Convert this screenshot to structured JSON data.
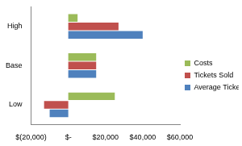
{
  "chart_data": {
    "type": "bar",
    "orientation": "horizontal",
    "categories": [
      "High",
      "Base",
      "Low"
    ],
    "series": [
      {
        "name": "Costs",
        "color": "#9bbb59",
        "values": [
          5000,
          15000,
          25000
        ]
      },
      {
        "name": "Tickets Sold",
        "color": "#c0504d",
        "values": [
          27000,
          15000,
          -13000
        ]
      },
      {
        "name": "Average Ticket Price",
        "color": "#4f81bd",
        "values": [
          40000,
          15000,
          -10000
        ]
      }
    ],
    "xlim": [
      -20000,
      60000
    ],
    "xticks": [
      {
        "value": -20000,
        "label": "$(20,000)"
      },
      {
        "value": 0,
        "label": "$-"
      },
      {
        "value": 20000,
        "label": "$20,000"
      },
      {
        "value": 40000,
        "label": "$40,000"
      },
      {
        "value": 60000,
        "label": "$60,000"
      }
    ],
    "grid": false,
    "legend": "right"
  }
}
